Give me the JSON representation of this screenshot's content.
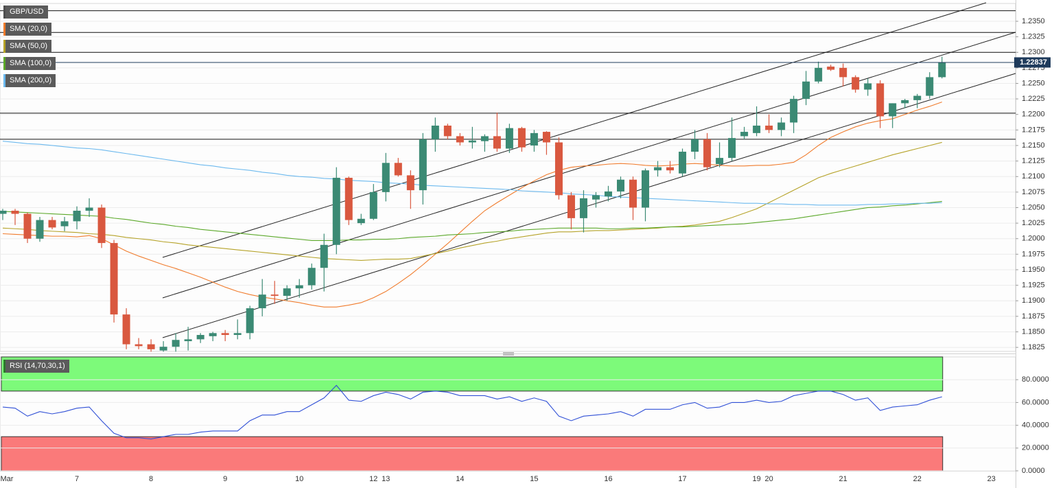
{
  "chart_data": {
    "type": "candlestick",
    "name": "GBP/USD",
    "color": "#4d4d4d",
    "up_color": "#3b8a74",
    "down_color": "#d9583f",
    "grid": true,
    "categories": [
      "Mar",
      null,
      null,
      null,
      null,
      null,
      "7",
      null,
      null,
      null,
      null,
      null,
      "8",
      null,
      null,
      null,
      null,
      null,
      "9",
      null,
      null,
      null,
      null,
      null,
      "10",
      null,
      null,
      null,
      null,
      null,
      "12",
      "13",
      null,
      null,
      null,
      null,
      null,
      "14",
      null,
      null,
      null,
      null,
      null,
      "15",
      null,
      null,
      null,
      null,
      null,
      "16",
      null,
      null,
      null,
      null,
      null,
      "17",
      null,
      null,
      null,
      null,
      null,
      "19",
      "20",
      null,
      null,
      null,
      null,
      null,
      "21",
      null,
      null,
      null,
      null,
      null,
      "22",
      null,
      null,
      null,
      null,
      null,
      "23",
      null,
      null
    ],
    "open": [
      1.204,
      1.2045,
      1.204,
      1.2,
      1.203,
      1.202,
      1.2028,
      1.2045,
      1.205,
      1.1993,
      1.1878,
      1.183,
      1.183,
      1.182,
      1.1826,
      1.1835,
      1.1838,
      1.1843,
      1.1848,
      1.1845,
      1.1848,
      1.1888,
      1.191,
      1.1908,
      1.192,
      1.1925,
      1.1953,
      1.199,
      1.2098,
      1.2025,
      1.2032,
      1.2075,
      1.2122,
      1.2102,
      1.2078,
      1.216,
      1.2182,
      1.2165,
      1.2155,
      1.2157,
      1.2165,
      1.2145,
      1.2178,
      1.215,
      1.2172,
      1.2155,
      1.207,
      1.2033,
      1.2063,
      1.2068,
      1.2076,
      1.2095,
      1.205,
      1.211,
      1.2115,
      1.2105,
      1.214,
      1.216,
      1.212,
      1.213,
      1.2165,
      1.217,
      1.2182,
      1.2175,
      1.2187,
      1.2225,
      1.2253,
      1.2277,
      1.2275,
      1.226,
      1.224,
      1.225,
      1.2197,
      1.2218,
      1.2223,
      1.223,
      1.226,
      null,
      null,
      null,
      null,
      null,
      null
    ],
    "high": [
      1.2048,
      1.2048,
      1.2042,
      1.2035,
      1.2035,
      1.2035,
      1.2052,
      1.2065,
      1.2055,
      1.1998,
      1.1888,
      1.184,
      1.1838,
      1.1835,
      1.1848,
      1.1858,
      1.1848,
      1.185,
      1.1853,
      1.187,
      1.1892,
      1.1935,
      1.1932,
      1.1925,
      1.1935,
      1.196,
      1.2008,
      1.2115,
      1.21,
      1.204,
      1.2088,
      1.2138,
      1.213,
      1.211,
      1.217,
      1.2195,
      1.2185,
      1.217,
      1.218,
      1.2168,
      1.2203,
      1.2185,
      1.218,
      1.2175,
      1.2173,
      1.2163,
      1.2075,
      1.2078,
      1.2075,
      1.2085,
      1.21,
      1.21,
      1.2113,
      1.2125,
      1.2125,
      1.2145,
      1.2175,
      1.217,
      1.2155,
      1.2195,
      1.218,
      1.2213,
      1.22,
      1.2195,
      1.223,
      1.227,
      1.2285,
      1.228,
      1.2282,
      1.2263,
      1.2258,
      1.2255,
      1.2218,
      1.2225,
      1.2233,
      1.2268,
      1.2293,
      null,
      null,
      null,
      null,
      null,
      null
    ],
    "low": [
      1.203,
      1.2022,
      1.1993,
      1.1995,
      1.2015,
      1.2012,
      1.2015,
      1.2035,
      1.1985,
      1.1865,
      1.1822,
      1.1822,
      1.1818,
      1.1818,
      1.1818,
      1.182,
      1.1832,
      1.1835,
      1.1835,
      1.1838,
      1.1838,
      1.1875,
      1.1895,
      1.19,
      1.1905,
      1.1918,
      1.1915,
      1.1975,
      1.2022,
      1.2022,
      1.203,
      1.206,
      1.21,
      1.2048,
      1.2055,
      1.214,
      1.216,
      1.215,
      1.2145,
      1.214,
      1.214,
      1.2138,
      1.214,
      1.214,
      1.2135,
      1.2063,
      1.2015,
      1.201,
      1.205,
      1.206,
      1.2065,
      1.203,
      1.2028,
      1.21,
      1.2105,
      1.21,
      1.2128,
      1.211,
      1.2115,
      1.2125,
      1.216,
      1.2165,
      1.217,
      1.2165,
      1.217,
      1.2215,
      1.225,
      1.227,
      1.2245,
      1.2235,
      1.223,
      1.2178,
      1.2178,
      1.221,
      1.221,
      1.2225,
      1.2258,
      null,
      null,
      null,
      null,
      null,
      null
    ],
    "close": [
      1.2045,
      1.204,
      1.2,
      1.203,
      1.2018,
      1.2028,
      1.2045,
      1.205,
      1.1993,
      1.1878,
      1.183,
      1.1827,
      1.1822,
      1.1826,
      1.1837,
      1.1838,
      1.1845,
      1.1848,
      1.1845,
      1.1848,
      1.1888,
      1.191,
      1.1908,
      1.192,
      1.1925,
      1.1953,
      1.199,
      1.2098,
      1.203,
      1.2032,
      1.2075,
      1.2122,
      1.2102,
      1.2078,
      1.216,
      1.2182,
      1.2165,
      1.2155,
      1.2158,
      1.2165,
      1.2145,
      1.2178,
      1.2147,
      1.217,
      1.2155,
      1.207,
      1.2033,
      1.2065,
      1.207,
      1.2076,
      1.2095,
      1.205,
      1.211,
      1.2115,
      1.211,
      1.214,
      1.216,
      1.2115,
      1.213,
      1.2162,
      1.2172,
      1.2182,
      1.2175,
      1.2187,
      1.2225,
      1.2253,
      1.2275,
      1.2272,
      1.226,
      1.224,
      1.225,
      1.2197,
      1.2218,
      1.2223,
      1.223,
      1.226,
      1.22837,
      null,
      null,
      null,
      null,
      null,
      null
    ],
    "series": [
      {
        "name": "SMA (20,0)",
        "color": "#f07b2c",
        "values": [
          1.2008,
          1.2007,
          1.2006,
          1.2005,
          1.2004,
          1.2004,
          1.2003,
          1.2005,
          1.2,
          1.199,
          1.198,
          1.1972,
          1.1965,
          1.1958,
          1.1952,
          1.1945,
          1.1938,
          1.193,
          1.1922,
          1.1915,
          1.191,
          1.1906,
          1.1903,
          1.19,
          1.1897,
          1.1893,
          1.189,
          1.189,
          1.1893,
          1.1897,
          1.1905,
          1.1915,
          1.1928,
          1.1942,
          1.1958,
          1.1975,
          1.1992,
          1.201,
          1.2028,
          1.2045,
          1.2058,
          1.207,
          1.2082,
          1.2093,
          1.2103,
          1.211,
          1.2115,
          1.2117,
          1.2118,
          1.212,
          1.2121,
          1.212,
          1.2118,
          1.2117,
          1.2118,
          1.212,
          1.2121,
          1.212,
          1.2118,
          1.2117,
          1.2117,
          1.2118,
          1.2118,
          1.212,
          1.2123,
          1.2135,
          1.215,
          1.2163,
          1.2172,
          1.218,
          1.2186,
          1.219,
          1.2193,
          1.22,
          1.2207,
          1.2213,
          1.222,
          null,
          null,
          null,
          null,
          null,
          null
        ]
      },
      {
        "name": "SMA (50,0)",
        "color": "#b5a227",
        "values": [
          1.2017,
          1.2016,
          1.2015,
          1.2013,
          1.2012,
          1.2011,
          1.201,
          1.2008,
          1.2007,
          1.2005,
          1.2002,
          1.2,
          1.1998,
          1.1995,
          1.1993,
          1.199,
          1.1988,
          1.1986,
          1.1984,
          1.1982,
          1.198,
          1.1978,
          1.1976,
          1.1974,
          1.1972,
          1.197,
          1.1968,
          1.1967,
          1.1966,
          1.1965,
          1.1966,
          1.1967,
          1.1967,
          1.1968,
          1.1972,
          1.1976,
          1.198,
          1.1985,
          1.1989,
          1.1993,
          1.1996,
          1.2,
          1.2003,
          1.2006,
          1.2009,
          1.2011,
          1.2011,
          1.2012,
          1.2013,
          1.2013,
          1.2014,
          1.2015,
          1.2016,
          1.2017,
          1.2019,
          1.202,
          1.2022,
          1.2025,
          1.2028,
          1.2034,
          1.2041,
          1.2048,
          1.2058,
          1.2068,
          1.2078,
          1.2088,
          1.2098,
          1.2105,
          1.2111,
          1.2117,
          1.2123,
          1.2129,
          1.2135,
          1.214,
          1.2145,
          1.215,
          1.2155,
          null,
          null,
          null,
          null,
          null,
          null
        ]
      },
      {
        "name": "SMA (100,0)",
        "color": "#5ba829",
        "values": [
          1.2044,
          1.2043,
          1.2042,
          1.2041,
          1.204,
          1.2039,
          1.2038,
          1.2037,
          1.2036,
          1.2033,
          1.2031,
          1.2028,
          1.2025,
          1.2023,
          1.202,
          1.2018,
          1.2015,
          1.2013,
          1.2011,
          1.2009,
          1.2007,
          1.2005,
          1.2003,
          1.2001,
          1.1999,
          1.1997,
          1.1997,
          1.1997,
          1.1998,
          1.1998,
          1.1999,
          1.1999,
          1.2,
          1.2002,
          1.2003,
          1.2004,
          1.2006,
          1.2007,
          1.2008,
          1.201,
          1.2011,
          1.2012,
          1.2014,
          1.2015,
          1.2016,
          1.2017,
          1.2017,
          1.2017,
          1.2017,
          1.2016,
          1.2016,
          1.2017,
          1.2017,
          1.2018,
          1.2019,
          1.2019,
          1.202,
          1.2021,
          1.2022,
          1.2023,
          1.2024,
          1.2026,
          1.2028,
          1.203,
          1.2032,
          1.2035,
          1.2038,
          1.2041,
          1.2044,
          1.2047,
          1.205,
          1.2051,
          1.2053,
          1.2054,
          1.2056,
          1.2058,
          1.206,
          null,
          null,
          null,
          null,
          null,
          null
        ]
      },
      {
        "name": "SMA (200,0)",
        "color": "#6cb9ee",
        "values": [
          1.2157,
          1.2155,
          1.2153,
          1.2152,
          1.215,
          1.2148,
          1.2146,
          1.2145,
          1.2143,
          1.214,
          1.2137,
          1.2134,
          1.2131,
          1.2128,
          1.2125,
          1.2122,
          1.2119,
          1.2117,
          1.2114,
          1.2112,
          1.211,
          1.2107,
          1.2105,
          1.2102,
          1.21,
          1.2099,
          1.2097,
          1.2096,
          1.2094,
          1.2093,
          1.2092,
          1.209,
          1.2089,
          1.2088,
          1.2086,
          1.2085,
          1.2084,
          1.2083,
          1.2082,
          1.2081,
          1.208,
          1.2079,
          1.2077,
          1.2076,
          1.2075,
          1.2074,
          1.2072,
          1.2071,
          1.207,
          1.2068,
          1.2067,
          1.2066,
          1.2065,
          1.2064,
          1.2063,
          1.2062,
          1.2061,
          1.206,
          1.2059,
          1.2058,
          1.2057,
          1.2057,
          1.2056,
          1.2056,
          1.2055,
          1.2055,
          1.2054,
          1.2054,
          1.2054,
          1.2054,
          1.2055,
          1.2055,
          1.2056,
          1.2056,
          1.2057,
          1.2057,
          1.2058,
          null,
          null,
          null,
          null,
          null,
          null
        ]
      }
    ],
    "levels": [
      1.2367,
      1.2332,
      1.23,
      1.2202,
      1.216
    ],
    "level_color": "#111111",
    "last_price_color": "#1f3b5c",
    "ylim": [
      1.18185,
      1.23787
    ],
    "yticks": [
      1.1825,
      {
        "value": 1.185,
        "label": "1.1850"
      },
      1.1875,
      {
        "value": 1.19,
        "label": "1.1900"
      },
      1.1925,
      {
        "value": 1.195,
        "label": "1.1950"
      },
      1.1975,
      {
        "value": 1.2,
        "label": "1.2000"
      },
      1.2025,
      {
        "value": 1.205,
        "label": "1.2050"
      },
      1.2075,
      {
        "value": 1.21,
        "label": "1.2100"
      },
      1.2125,
      {
        "value": 1.215,
        "label": "1.2150"
      },
      1.2175,
      {
        "value": 1.22,
        "label": "1.2200"
      },
      1.2225,
      {
        "value": 1.225,
        "label": "1.2250"
      },
      1.2275,
      {
        "value": 1.23,
        "label": "1.2300"
      },
      1.2325,
      {
        "value": 1.235,
        "label": "1.2350"
      }
    ],
    "rsi": {
      "type": "line",
      "name": "RSI (14,70,30,1)",
      "color": "#2f4fd6",
      "overbought": 70,
      "oversold": 30,
      "overbought_color": "#7dfa7a",
      "oversold_color": "#fa7a7a",
      "values": [
        56,
        55,
        48,
        52,
        50,
        52,
        55,
        56,
        44,
        33,
        29,
        29,
        28,
        30,
        32,
        32,
        34,
        35,
        35,
        35,
        44,
        49,
        49,
        52,
        52,
        58,
        64,
        75,
        62,
        61,
        66,
        69,
        67,
        63,
        69,
        70,
        69,
        66,
        66,
        66,
        63,
        65,
        61,
        64,
        61,
        48,
        44,
        48,
        49,
        50,
        52,
        48,
        54,
        54,
        54,
        58,
        60,
        55,
        56,
        60,
        60,
        62,
        60,
        61,
        66,
        68,
        70,
        70,
        67,
        62,
        64,
        53,
        56,
        57,
        58,
        62,
        65,
        null,
        null,
        null,
        null,
        null,
        null
      ],
      "ylim": [
        0,
        100
      ],
      "yticks": [
        {
          "value": 0,
          "label": "0.0000"
        },
        {
          "value": 20,
          "label": "20.0000"
        },
        {
          "value": 40,
          "label": "40.0000"
        },
        {
          "value": 60,
          "label": "60.0000"
        },
        {
          "value": 80,
          "label": "80.0000"
        }
      ]
    }
  }
}
